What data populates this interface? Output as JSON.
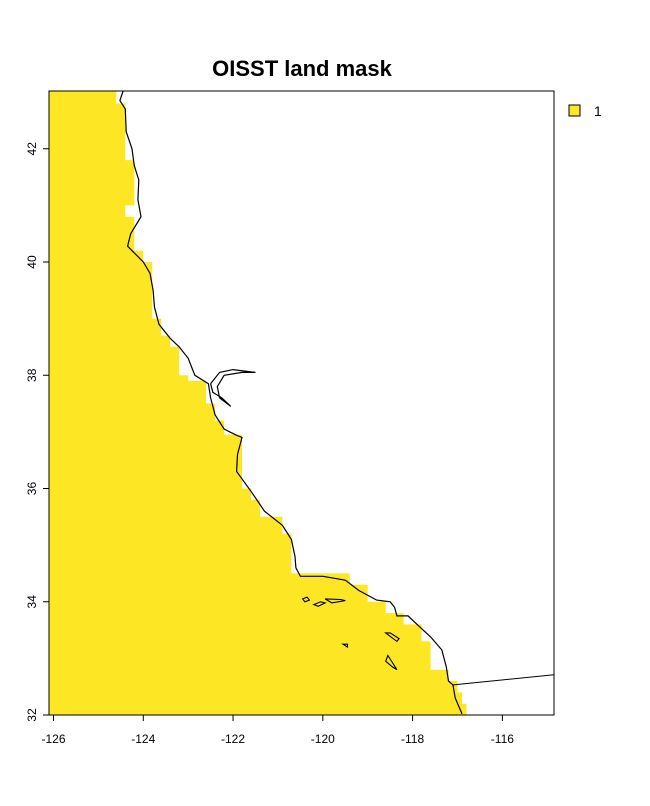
{
  "title": "OISST land mask",
  "colors": {
    "land": "#FDE725",
    "coast": "#000000",
    "background": "#ffffff"
  },
  "x_axis": {
    "range": [
      -126.1,
      -114.85
    ],
    "ticks": [
      -126,
      -124,
      -122,
      -120,
      -118,
      -116
    ],
    "tick_labels": [
      "-126",
      "-124",
      "-122",
      "-120",
      "-118",
      "-116"
    ]
  },
  "y_axis": {
    "range": [
      32,
      43.02
    ],
    "ticks": [
      32,
      34,
      36,
      38,
      40,
      42
    ],
    "tick_labels": [
      "32",
      "34",
      "36",
      "38",
      "40",
      "42"
    ]
  },
  "legend": {
    "position": "top-right",
    "items": [
      {
        "label": "1",
        "color": "#FDE725"
      }
    ]
  },
  "mask_steps": [
    {
      "lat": 43.02,
      "lon": -124.6
    },
    {
      "lat": 42.8,
      "lon": -124.4
    },
    {
      "lat": 41.8,
      "lon": -124.2
    },
    {
      "lat": 41.0,
      "lon": -124.4
    },
    {
      "lat": 40.8,
      "lon": -124.2
    },
    {
      "lat": 40.2,
      "lon": -124.0
    },
    {
      "lat": 40.0,
      "lon": -123.8
    },
    {
      "lat": 39.0,
      "lon": -123.6
    },
    {
      "lat": 38.7,
      "lon": -123.4
    },
    {
      "lat": 38.5,
      "lon": -123.2
    },
    {
      "lat": 38.0,
      "lon": -123.0
    },
    {
      "lat": 37.9,
      "lon": -122.6
    },
    {
      "lat": 37.5,
      "lon": -122.4
    },
    {
      "lat": 37.2,
      "lon": -122.2
    },
    {
      "lat": 36.95,
      "lon": -121.8
    },
    {
      "lat": 36.0,
      "lon": -121.6
    },
    {
      "lat": 35.8,
      "lon": -121.4
    },
    {
      "lat": 35.5,
      "lon": -120.9
    },
    {
      "lat": 35.2,
      "lon": -120.7
    },
    {
      "lat": 34.5,
      "lon": -119.4
    },
    {
      "lat": 34.3,
      "lon": -119.0
    },
    {
      "lat": 34.0,
      "lon": -118.6
    },
    {
      "lat": 33.8,
      "lon": -118.2
    },
    {
      "lat": 33.6,
      "lon": -117.8
    },
    {
      "lat": 33.3,
      "lon": -117.6
    },
    {
      "lat": 32.8,
      "lon": -117.2
    },
    {
      "lat": 32.6,
      "lon": -117.0
    },
    {
      "lat": 32.4,
      "lon": -116.9
    },
    {
      "lat": 32.2,
      "lon": -116.8
    }
  ],
  "coastline": [
    [
      -124.45,
      43.02
    ],
    [
      -124.52,
      42.85
    ],
    [
      -124.4,
      42.7
    ],
    [
      -124.38,
      42.3
    ],
    [
      -124.25,
      42.0
    ],
    [
      -124.2,
      41.7
    ],
    [
      -124.1,
      41.45
    ],
    [
      -124.12,
      41.1
    ],
    [
      -124.05,
      40.8
    ],
    [
      -124.28,
      40.5
    ],
    [
      -124.35,
      40.28
    ],
    [
      -124.0,
      40.0
    ],
    [
      -123.85,
      39.8
    ],
    [
      -123.78,
      39.5
    ],
    [
      -123.75,
      39.2
    ],
    [
      -123.65,
      38.9
    ],
    [
      -123.4,
      38.65
    ],
    [
      -123.2,
      38.5
    ],
    [
      -123.0,
      38.3
    ],
    [
      -122.9,
      38.1
    ],
    [
      -122.85,
      38.0
    ],
    [
      -122.55,
      37.85
    ],
    [
      -122.5,
      37.6
    ],
    [
      -122.4,
      37.3
    ],
    [
      -122.2,
      37.05
    ],
    [
      -121.95,
      36.95
    ],
    [
      -121.8,
      36.9
    ],
    [
      -121.9,
      36.6
    ],
    [
      -121.92,
      36.3
    ],
    [
      -121.6,
      35.95
    ],
    [
      -121.3,
      35.6
    ],
    [
      -120.9,
      35.35
    ],
    [
      -120.7,
      35.1
    ],
    [
      -120.62,
      34.8
    ],
    [
      -120.6,
      34.6
    ],
    [
      -120.5,
      34.45
    ],
    [
      -120.0,
      34.45
    ],
    [
      -119.5,
      34.38
    ],
    [
      -119.2,
      34.2
    ],
    [
      -118.8,
      34.03
    ],
    [
      -118.5,
      34.0
    ],
    [
      -118.4,
      33.9
    ],
    [
      -118.35,
      33.75
    ],
    [
      -118.1,
      33.75
    ],
    [
      -117.9,
      33.6
    ],
    [
      -117.6,
      33.38
    ],
    [
      -117.35,
      33.15
    ],
    [
      -117.25,
      32.85
    ],
    [
      -117.2,
      32.6
    ],
    [
      -117.1,
      32.53
    ],
    [
      -117.05,
      32.3
    ],
    [
      -116.9,
      32.02
    ]
  ],
  "bay": [
    [
      -122.5,
      37.85
    ],
    [
      -122.3,
      38.05
    ],
    [
      -122.0,
      38.1
    ],
    [
      -121.5,
      38.05
    ],
    [
      -121.8,
      38.05
    ],
    [
      -122.2,
      38.0
    ],
    [
      -122.35,
      37.8
    ],
    [
      -122.3,
      37.6
    ],
    [
      -122.05,
      37.45
    ],
    [
      -122.25,
      37.6
    ],
    [
      -122.45,
      37.7
    ],
    [
      -122.5,
      37.85
    ]
  ],
  "border": [
    [
      -117.12,
      32.53
    ],
    [
      -114.72,
      32.72
    ]
  ],
  "islands": [
    [
      [
        -120.45,
        34.05
      ],
      [
        -120.35,
        34.08
      ],
      [
        -120.3,
        34.03
      ],
      [
        -120.4,
        34.0
      ],
      [
        -120.45,
        34.05
      ]
    ],
    [
      [
        -120.2,
        33.95
      ],
      [
        -120.05,
        34.0
      ],
      [
        -119.95,
        33.98
      ],
      [
        -120.1,
        33.92
      ],
      [
        -120.2,
        33.95
      ]
    ],
    [
      [
        -119.95,
        34.05
      ],
      [
        -119.6,
        34.04
      ],
      [
        -119.5,
        34.02
      ],
      [
        -119.8,
        33.98
      ],
      [
        -119.95,
        34.05
      ]
    ],
    [
      [
        -119.55,
        33.25
      ],
      [
        -119.45,
        33.25
      ],
      [
        -119.45,
        33.2
      ],
      [
        -119.55,
        33.25
      ]
    ],
    [
      [
        -118.6,
        33.45
      ],
      [
        -118.35,
        33.3
      ],
      [
        -118.3,
        33.35
      ],
      [
        -118.5,
        33.45
      ],
      [
        -118.6,
        33.45
      ]
    ],
    [
      [
        -118.55,
        33.05
      ],
      [
        -118.35,
        32.8
      ],
      [
        -118.45,
        32.85
      ],
      [
        -118.6,
        32.95
      ],
      [
        -118.55,
        33.05
      ]
    ]
  ]
}
